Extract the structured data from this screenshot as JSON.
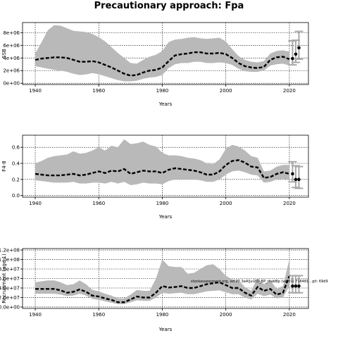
{
  "title": "Precautionary approach: Fpa",
  "stamp": "stockassessment.org, ed.27.3a4(Jul20)_BP_rhabBp (ver01) 716481 , git: 69d9",
  "chart_data": [
    {
      "type": "line",
      "xlabel": "Years",
      "ylabel": "SSB",
      "xlim": [
        1936,
        2026
      ],
      "ylim": [
        -200000,
        9600000
      ],
      "xticks": [
        1940,
        1960,
        1980,
        2000,
        2020
      ],
      "yticks": [
        0,
        2000000,
        4000000,
        6000000,
        8000000
      ],
      "ytick_labels": [
        "0e+00",
        "2e+06",
        "4e+06",
        "6e+06",
        "8e+06"
      ],
      "grid": true,
      "series": [
        {
          "role": "estimate",
          "x": [
            1940,
            1942,
            1944,
            1946,
            1948,
            1950,
            1952,
            1954,
            1956,
            1958,
            1960,
            1962,
            1964,
            1966,
            1968,
            1970,
            1972,
            1974,
            1976,
            1978,
            1980,
            1982,
            1984,
            1986,
            1988,
            1990,
            1992,
            1994,
            1996,
            1998,
            2000,
            2002,
            2004,
            2006,
            2008,
            2010,
            2012,
            2014,
            2016,
            2018,
            2020
          ],
          "y": [
            3700000,
            3900000,
            4000000,
            4100000,
            4100000,
            4000000,
            3700000,
            3400000,
            3400000,
            3500000,
            3300000,
            2900000,
            2500000,
            2000000,
            1500000,
            1200000,
            1300000,
            1700000,
            2000000,
            2100000,
            2500000,
            3500000,
            4400000,
            4600000,
            4700000,
            4900000,
            4900000,
            4700000,
            4700000,
            4800000,
            4600000,
            4000000,
            3200000,
            2700000,
            2500000,
            2400000,
            2600000,
            3700000,
            4100000,
            4200000,
            3800000
          ],
          "lower": [
            2700000,
            2500000,
            2300000,
            2100000,
            2000000,
            1800000,
            1500000,
            1300000,
            1400000,
            1600000,
            1400000,
            1100000,
            800000,
            500000,
            300000,
            300000,
            400000,
            700000,
            900000,
            1000000,
            1300000,
            2400000,
            3000000,
            3200000,
            3200000,
            3400000,
            3400000,
            3200000,
            3200000,
            3300000,
            3200000,
            2900000,
            2300000,
            1900000,
            1800000,
            1800000,
            2000000,
            2800000,
            3000000,
            3100000,
            2800000
          ],
          "upper": [
            4700000,
            6500000,
            8400000,
            9200000,
            9100000,
            8700000,
            8300000,
            8200000,
            8100000,
            7800000,
            7300000,
            6600000,
            5700000,
            4800000,
            4000000,
            3200000,
            3100000,
            3700000,
            4200000,
            4500000,
            5100000,
            6500000,
            6900000,
            7000000,
            7200000,
            7300000,
            7100000,
            7000000,
            7100000,
            7200000,
            6600000,
            5400000,
            4300000,
            3700000,
            3400000,
            3300000,
            3500000,
            4700000,
            5100000,
            5200000,
            5000000
          ]
        }
      ],
      "recent_points": [
        {
          "x": 2021,
          "y": 3900000,
          "low": 2900000,
          "high": 6700000
        },
        {
          "x": 2022,
          "y": 4600000,
          "low": 3300000,
          "high": 6800000
        },
        {
          "x": 2023,
          "y": 5600000,
          "low": 3800000,
          "high": 8200000
        }
      ]
    },
    {
      "type": "line",
      "xlabel": "Years",
      "ylabel": "F4-8",
      "xlim": [
        1936,
        2026
      ],
      "ylim": [
        -0.02,
        0.75
      ],
      "xticks": [
        1940,
        1960,
        1980,
        2000,
        2020
      ],
      "yticks": [
        0.0,
        0.2,
        0.4,
        0.6
      ],
      "ytick_labels": [
        "0.0",
        "0.2",
        "0.4",
        "0.6"
      ],
      "grid": true,
      "series": [
        {
          "role": "estimate",
          "x": [
            1940,
            1942,
            1944,
            1946,
            1948,
            1950,
            1952,
            1954,
            1956,
            1958,
            1960,
            1962,
            1964,
            1966,
            1968,
            1970,
            1972,
            1974,
            1976,
            1978,
            1980,
            1982,
            1984,
            1986,
            1988,
            1990,
            1992,
            1994,
            1996,
            1998,
            2000,
            2002,
            2004,
            2006,
            2008,
            2010,
            2012,
            2014,
            2016,
            2018,
            2020
          ],
          "y": [
            0.27,
            0.26,
            0.25,
            0.25,
            0.25,
            0.26,
            0.27,
            0.25,
            0.26,
            0.28,
            0.3,
            0.28,
            0.31,
            0.3,
            0.33,
            0.27,
            0.29,
            0.31,
            0.3,
            0.3,
            0.28,
            0.32,
            0.34,
            0.33,
            0.32,
            0.31,
            0.29,
            0.26,
            0.26,
            0.3,
            0.38,
            0.43,
            0.44,
            0.41,
            0.36,
            0.35,
            0.22,
            0.23,
            0.27,
            0.29,
            0.27
          ],
          "lower": [
            0.19,
            0.18,
            0.17,
            0.16,
            0.16,
            0.16,
            0.17,
            0.15,
            0.15,
            0.16,
            0.16,
            0.15,
            0.17,
            0.15,
            0.17,
            0.13,
            0.14,
            0.16,
            0.15,
            0.15,
            0.14,
            0.18,
            0.2,
            0.2,
            0.2,
            0.2,
            0.19,
            0.17,
            0.17,
            0.2,
            0.26,
            0.3,
            0.31,
            0.29,
            0.26,
            0.25,
            0.16,
            0.17,
            0.2,
            0.21,
            0.19
          ],
          "upper": [
            0.4,
            0.43,
            0.47,
            0.49,
            0.5,
            0.51,
            0.55,
            0.52,
            0.53,
            0.56,
            0.6,
            0.56,
            0.62,
            0.6,
            0.7,
            0.64,
            0.65,
            0.67,
            0.63,
            0.61,
            0.53,
            0.5,
            0.5,
            0.49,
            0.47,
            0.46,
            0.44,
            0.4,
            0.39,
            0.45,
            0.58,
            0.63,
            0.61,
            0.56,
            0.49,
            0.47,
            0.3,
            0.31,
            0.36,
            0.38,
            0.38
          ]
        }
      ],
      "recent_points": [
        {
          "x": 2021,
          "y": 0.27,
          "low": 0.17,
          "high": 0.42
        },
        {
          "x": 2022,
          "y": 0.2,
          "low": 0.1,
          "high": 0.37
        },
        {
          "x": 2023,
          "y": 0.2,
          "low": 0.09,
          "high": 0.36
        }
      ]
    },
    {
      "type": "line",
      "xlabel": "Years",
      "ylabel": "Recruitment (age 1)",
      "xlim": [
        1936,
        2026
      ],
      "ylim": [
        -3000000,
        123000000
      ],
      "xticks": [
        1940,
        1960,
        1980,
        2000,
        2020
      ],
      "yticks": [
        0,
        20000000,
        40000000,
        60000000,
        80000000,
        100000000,
        120000000
      ],
      "ytick_labels": [
        "0.0e+00",
        "2.0e+07",
        "4.0e+07",
        "6.0e+07",
        "8.0e+07",
        "1.0e+08",
        "1.2e+08"
      ],
      "grid": true,
      "series": [
        {
          "role": "estimate",
          "x": [
            1940,
            1942,
            1944,
            1946,
            1948,
            1950,
            1952,
            1954,
            1956,
            1958,
            1960,
            1962,
            1964,
            1966,
            1968,
            1970,
            1972,
            1974,
            1976,
            1978,
            1980,
            1982,
            1984,
            1986,
            1988,
            1990,
            1992,
            1994,
            1996,
            1998,
            2000,
            2002,
            2004,
            2006,
            2008,
            2010,
            2012,
            2014,
            2016,
            2018,
            2020
          ],
          "y": [
            38000000,
            38000000,
            38000000,
            38000000,
            35000000,
            30000000,
            32000000,
            37000000,
            32000000,
            24000000,
            22000000,
            18000000,
            15000000,
            10000000,
            10000000,
            16000000,
            22000000,
            20000000,
            20000000,
            30000000,
            44000000,
            41000000,
            42000000,
            44000000,
            40000000,
            40000000,
            44000000,
            48000000,
            50000000,
            52000000,
            46000000,
            40000000,
            40000000,
            30000000,
            24000000,
            42000000,
            34000000,
            38000000,
            26000000,
            30000000,
            66000000
          ],
          "lower": [
            28000000,
            28000000,
            28000000,
            28000000,
            26000000,
            23000000,
            24000000,
            28000000,
            24000000,
            17000000,
            15000000,
            12000000,
            9000000,
            6000000,
            6000000,
            10000000,
            14000000,
            13000000,
            13000000,
            20000000,
            30000000,
            28000000,
            29000000,
            30000000,
            27000000,
            27000000,
            30000000,
            33000000,
            34000000,
            35000000,
            31000000,
            27000000,
            27000000,
            20000000,
            16000000,
            28000000,
            23000000,
            26000000,
            18000000,
            20000000,
            44000000
          ],
          "upper": [
            52000000,
            54000000,
            56000000,
            56000000,
            52000000,
            46000000,
            48000000,
            56000000,
            48000000,
            36000000,
            33000000,
            28000000,
            24000000,
            18000000,
            18000000,
            26000000,
            36000000,
            34000000,
            34000000,
            60000000,
            100000000,
            86000000,
            84000000,
            84000000,
            70000000,
            72000000,
            80000000,
            88000000,
            90000000,
            80000000,
            66000000,
            58000000,
            56000000,
            42000000,
            34000000,
            62000000,
            48000000,
            56000000,
            38000000,
            44000000,
            100000000
          ]
        }
      ],
      "recent_points": [
        {
          "x": 2021,
          "y": 44000000,
          "low": 30000000,
          "high": 66000000
        },
        {
          "x": 2022,
          "y": 44000000,
          "low": 30000000,
          "high": 66000000
        },
        {
          "x": 2023,
          "y": 44000000,
          "low": 30000000,
          "high": 66000000
        }
      ]
    }
  ]
}
